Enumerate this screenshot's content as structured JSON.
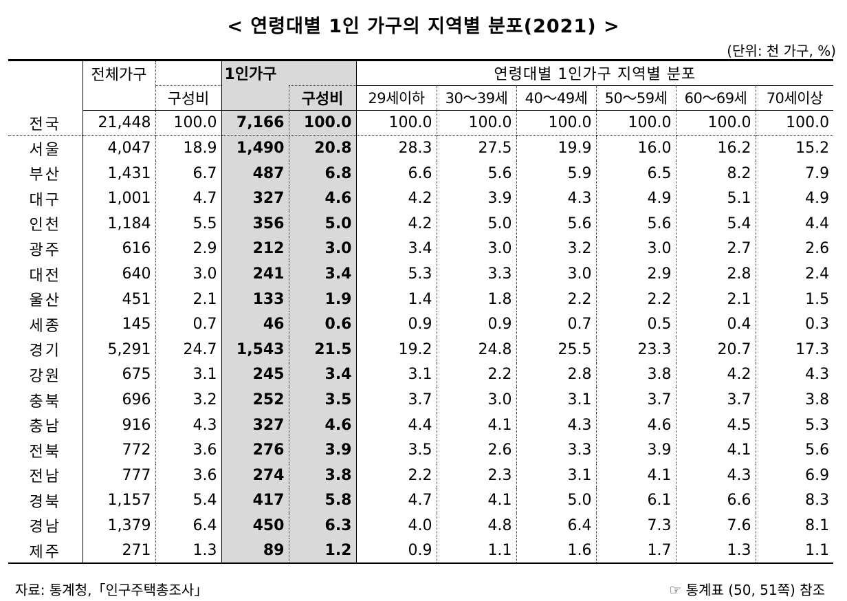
{
  "title": "< 연령대별 1인 가구의 지역별 분포(2021) >",
  "unit": "(단위: 천 가구, %)",
  "headers": {
    "total_households": "전체가구",
    "composition": "구성비",
    "single_households": "1인가구",
    "single_composition": "구성비",
    "age_group_title": "연령대별 1인가구 지역별 분포",
    "age_groups": [
      "29세이하",
      "30～39세",
      "40～49세",
      "50～59세",
      "60～69세",
      "70세이상"
    ]
  },
  "rows": [
    {
      "region": "전국",
      "total": "21,448",
      "total_pct": "100.0",
      "single": "7,166",
      "single_pct": "100.0",
      "ages": [
        "100.0",
        "100.0",
        "100.0",
        "100.0",
        "100.0",
        "100.0"
      ]
    },
    {
      "region": "서울",
      "total": "4,047",
      "total_pct": "18.9",
      "single": "1,490",
      "single_pct": "20.8",
      "ages": [
        "28.3",
        "27.5",
        "19.9",
        "16.0",
        "16.2",
        "15.2"
      ]
    },
    {
      "region": "부산",
      "total": "1,431",
      "total_pct": "6.7",
      "single": "487",
      "single_pct": "6.8",
      "ages": [
        "6.6",
        "5.6",
        "5.9",
        "6.5",
        "8.2",
        "7.9"
      ]
    },
    {
      "region": "대구",
      "total": "1,001",
      "total_pct": "4.7",
      "single": "327",
      "single_pct": "4.6",
      "ages": [
        "4.2",
        "3.9",
        "4.3",
        "4.9",
        "5.1",
        "4.9"
      ]
    },
    {
      "region": "인천",
      "total": "1,184",
      "total_pct": "5.5",
      "single": "356",
      "single_pct": "5.0",
      "ages": [
        "4.2",
        "5.0",
        "5.6",
        "5.6",
        "5.4",
        "4.4"
      ]
    },
    {
      "region": "광주",
      "total": "616",
      "total_pct": "2.9",
      "single": "212",
      "single_pct": "3.0",
      "ages": [
        "3.4",
        "3.0",
        "3.2",
        "3.0",
        "2.7",
        "2.6"
      ]
    },
    {
      "region": "대전",
      "total": "640",
      "total_pct": "3.0",
      "single": "241",
      "single_pct": "3.4",
      "ages": [
        "5.3",
        "3.3",
        "3.0",
        "2.9",
        "2.8",
        "2.4"
      ]
    },
    {
      "region": "울산",
      "total": "451",
      "total_pct": "2.1",
      "single": "133",
      "single_pct": "1.9",
      "ages": [
        "1.4",
        "1.8",
        "2.2",
        "2.2",
        "2.1",
        "1.5"
      ]
    },
    {
      "region": "세종",
      "total": "145",
      "total_pct": "0.7",
      "single": "46",
      "single_pct": "0.6",
      "ages": [
        "0.9",
        "0.9",
        "0.7",
        "0.5",
        "0.4",
        "0.3"
      ]
    },
    {
      "region": "경기",
      "total": "5,291",
      "total_pct": "24.7",
      "single": "1,543",
      "single_pct": "21.5",
      "ages": [
        "19.2",
        "24.8",
        "25.5",
        "23.3",
        "20.7",
        "17.3"
      ]
    },
    {
      "region": "강원",
      "total": "675",
      "total_pct": "3.1",
      "single": "245",
      "single_pct": "3.4",
      "ages": [
        "3.1",
        "2.2",
        "2.8",
        "3.8",
        "4.2",
        "4.3"
      ]
    },
    {
      "region": "충북",
      "total": "696",
      "total_pct": "3.2",
      "single": "252",
      "single_pct": "3.5",
      "ages": [
        "3.7",
        "3.0",
        "3.1",
        "3.7",
        "3.7",
        "3.8"
      ]
    },
    {
      "region": "충남",
      "total": "916",
      "total_pct": "4.3",
      "single": "327",
      "single_pct": "4.6",
      "ages": [
        "4.4",
        "4.1",
        "4.3",
        "4.6",
        "4.5",
        "5.3"
      ]
    },
    {
      "region": "전북",
      "total": "772",
      "total_pct": "3.6",
      "single": "276",
      "single_pct": "3.9",
      "ages": [
        "3.5",
        "2.6",
        "3.3",
        "3.9",
        "4.1",
        "5.6"
      ]
    },
    {
      "region": "전남",
      "total": "777",
      "total_pct": "3.6",
      "single": "274",
      "single_pct": "3.8",
      "ages": [
        "2.2",
        "2.3",
        "3.1",
        "4.1",
        "4.3",
        "6.9"
      ]
    },
    {
      "region": "경북",
      "total": "1,157",
      "total_pct": "5.4",
      "single": "417",
      "single_pct": "5.8",
      "ages": [
        "4.7",
        "4.1",
        "5.0",
        "6.1",
        "6.6",
        "8.3"
      ]
    },
    {
      "region": "경남",
      "total": "1,379",
      "total_pct": "6.4",
      "single": "450",
      "single_pct": "6.3",
      "ages": [
        "4.0",
        "4.8",
        "6.4",
        "7.3",
        "7.6",
        "8.1"
      ]
    },
    {
      "region": "제주",
      "total": "271",
      "total_pct": "1.3",
      "single": "89",
      "single_pct": "1.2",
      "ages": [
        "0.9",
        "1.1",
        "1.6",
        "1.7",
        "1.3",
        "1.1"
      ]
    }
  ],
  "footer": {
    "source": "자료: 통계청,「인구주택총조사」",
    "reference": "☞ 통계표 (50, 51쪽) 참조"
  }
}
